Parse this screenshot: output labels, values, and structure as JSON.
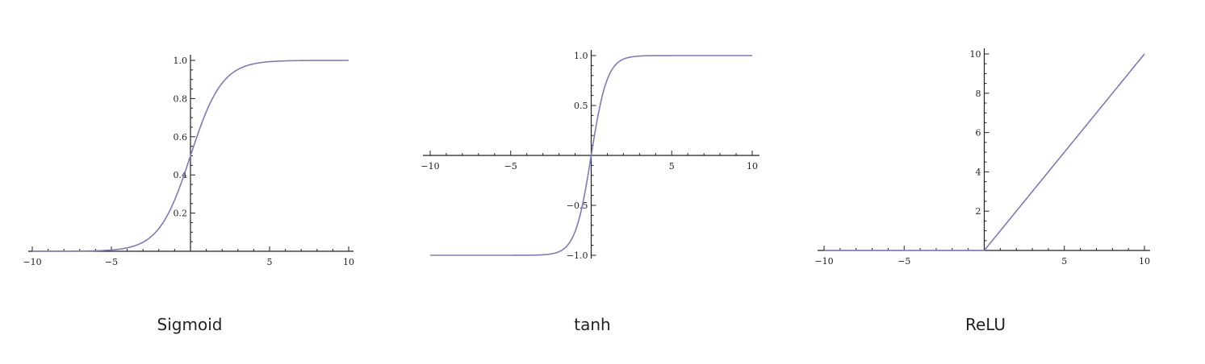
{
  "chart_data": [
    {
      "type": "line",
      "caption": "Sigmoid",
      "function": "sigmoid",
      "xlim": [
        -10,
        10
      ],
      "ylim": [
        0,
        1
      ],
      "xticks": [
        -10,
        -5,
        5,
        10
      ],
      "xtick_labels": [
        "−10",
        "−5",
        "5",
        "10"
      ],
      "yticks": [
        0.2,
        0.4,
        0.6,
        0.8,
        1.0
      ],
      "ytick_labels": [
        "0.2",
        "0.4",
        "0.6",
        "0.8",
        "1.0"
      ],
      "x_minor_step": 1,
      "y_minor_step": 0.05,
      "color": "#7b7bbd",
      "series": [
        {
          "x": [
            -10,
            -8,
            -6,
            -5,
            -4,
            -3,
            -2,
            -1,
            0,
            1,
            2,
            3,
            4,
            5,
            6,
            8,
            10
          ],
          "y": [
            4.54e-05,
            0.000335,
            0.00247,
            0.0067,
            0.018,
            0.047,
            0.119,
            0.269,
            0.5,
            0.731,
            0.881,
            0.953,
            0.982,
            0.993,
            0.9975,
            0.99966,
            0.99995
          ]
        }
      ]
    },
    {
      "type": "line",
      "caption": "tanh",
      "function": "tanh",
      "xlim": [
        -10,
        10
      ],
      "ylim": [
        -1,
        1
      ],
      "xticks": [
        -10,
        -5,
        5,
        10
      ],
      "xtick_labels": [
        "−10",
        "−5",
        "5",
        "10"
      ],
      "yticks": [
        -1.0,
        -0.5,
        0.5,
        1.0
      ],
      "ytick_labels": [
        "−1.0",
        "−0.5",
        "0.5",
        "1.0"
      ],
      "x_minor_step": 1,
      "y_minor_step": 0.1,
      "color": "#7b7bbd",
      "series": [
        {
          "x": [
            -10,
            -5,
            -3,
            -2,
            -1,
            -0.5,
            0,
            0.5,
            1,
            2,
            3,
            5,
            10
          ],
          "y": [
            -1.0,
            -0.9999,
            -0.995,
            -0.964,
            -0.762,
            -0.462,
            0,
            0.462,
            0.762,
            0.964,
            0.995,
            0.9999,
            1.0
          ]
        }
      ]
    },
    {
      "type": "line",
      "caption": "ReLU",
      "function": "relu",
      "xlim": [
        -10,
        10
      ],
      "ylim": [
        0,
        10
      ],
      "xticks": [
        -10,
        -5,
        5,
        10
      ],
      "xtick_labels": [
        "−10",
        "−5",
        "5",
        "10"
      ],
      "yticks": [
        2,
        4,
        6,
        8,
        10
      ],
      "ytick_labels": [
        "2",
        "4",
        "6",
        "8",
        "10"
      ],
      "x_minor_step": 1,
      "y_minor_step": 0.5,
      "color": "#7b7bbd",
      "series": [
        {
          "x": [
            -10,
            0,
            10
          ],
          "y": [
            0,
            0,
            10
          ]
        }
      ]
    }
  ]
}
